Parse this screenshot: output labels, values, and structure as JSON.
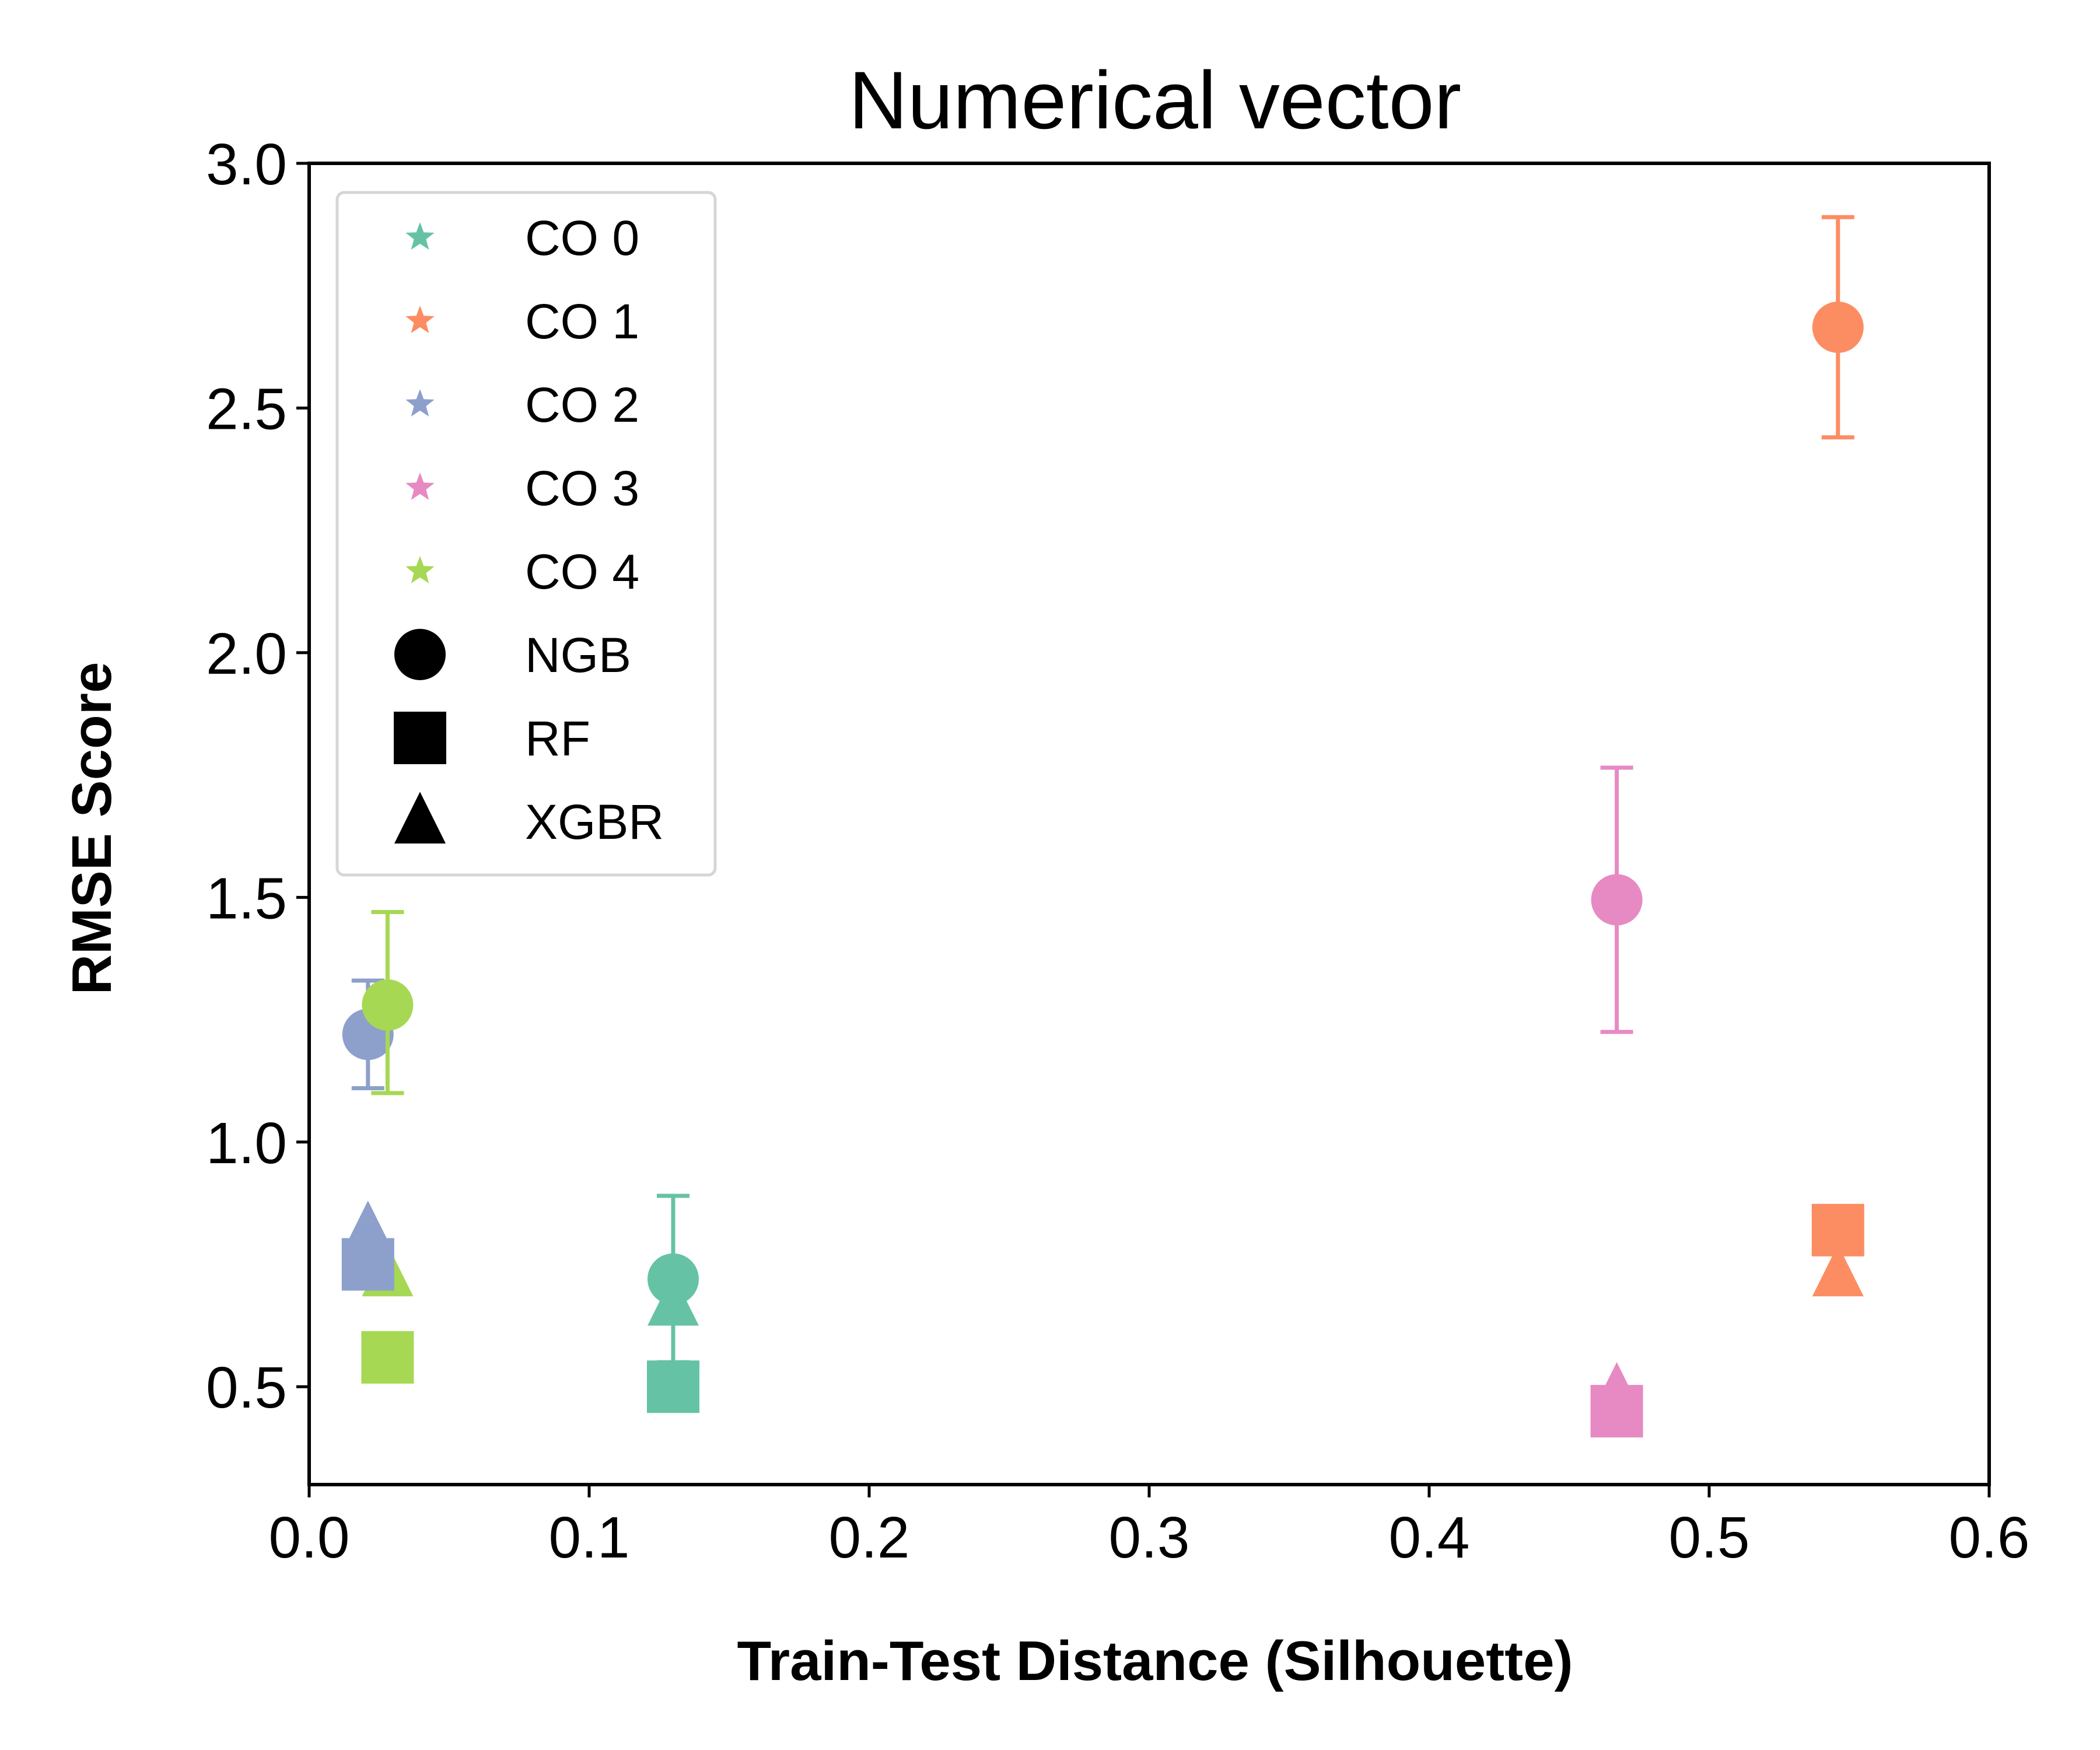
{
  "chart_data": {
    "type": "scatter",
    "title": "Numerical vector",
    "xlabel": "Train-Test Distance (Silhouette)",
    "ylabel": "RMSE Score",
    "xlim": [
      0.0,
      0.6
    ],
    "ylim": [
      0.3,
      3.0
    ],
    "xticks": [
      "0.0",
      "0.1",
      "0.2",
      "0.3",
      "0.4",
      "0.5",
      "0.6"
    ],
    "yticks": [
      "0.5",
      "1.0",
      "1.5",
      "2.0",
      "2.5",
      "3.0"
    ],
    "grid": false,
    "legend_position": "top-left",
    "groups": [
      {
        "name": "CO 0",
        "color": "#66c2a5"
      },
      {
        "name": "CO 1",
        "color": "#fc8d62"
      },
      {
        "name": "CO 2",
        "color": "#8da0cb"
      },
      {
        "name": "CO 3",
        "color": "#e78ac3"
      },
      {
        "name": "CO 4",
        "color": "#a6d854"
      }
    ],
    "models": [
      {
        "name": "NGB",
        "marker": "circle"
      },
      {
        "name": "RF",
        "marker": "square"
      },
      {
        "name": "XGBR",
        "marker": "triangle"
      }
    ],
    "points": [
      {
        "group": "CO 0",
        "model": "NGB",
        "x": 0.13,
        "y": 0.72,
        "yerr_low": 0.55,
        "yerr_high": 0.89
      },
      {
        "group": "CO 0",
        "model": "RF",
        "x": 0.13,
        "y": 0.5
      },
      {
        "group": "CO 0",
        "model": "XGBR",
        "x": 0.13,
        "y": 0.67
      },
      {
        "group": "CO 1",
        "model": "NGB",
        "x": 0.546,
        "y": 2.665,
        "yerr_low": 2.44,
        "yerr_high": 2.89
      },
      {
        "group": "CO 1",
        "model": "RF",
        "x": 0.546,
        "y": 0.82
      },
      {
        "group": "CO 1",
        "model": "XGBR",
        "x": 0.546,
        "y": 0.73
      },
      {
        "group": "CO 2",
        "model": "NGB",
        "x": 0.021,
        "y": 1.22,
        "yerr_low": 1.11,
        "yerr_high": 1.33
      },
      {
        "group": "CO 2",
        "model": "RF",
        "x": 0.021,
        "y": 0.75
      },
      {
        "group": "CO 2",
        "model": "XGBR",
        "x": 0.021,
        "y": 0.82
      },
      {
        "group": "CO 3",
        "model": "NGB",
        "x": 0.467,
        "y": 1.495,
        "yerr_low": 1.225,
        "yerr_high": 1.765
      },
      {
        "group": "CO 3",
        "model": "RF",
        "x": 0.467,
        "y": 0.45
      },
      {
        "group": "CO 3",
        "model": "XGBR",
        "x": 0.467,
        "y": 0.49
      },
      {
        "group": "CO 4",
        "model": "NGB",
        "x": 0.028,
        "y": 1.28,
        "yerr_low": 1.1,
        "yerr_high": 1.47
      },
      {
        "group": "CO 4",
        "model": "RF",
        "x": 0.028,
        "y": 0.56
      },
      {
        "group": "CO 4",
        "model": "XGBR",
        "x": 0.028,
        "y": 0.73
      }
    ]
  }
}
